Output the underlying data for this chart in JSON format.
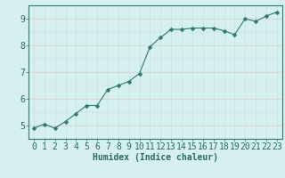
{
  "x": [
    0,
    1,
    2,
    3,
    4,
    5,
    6,
    7,
    8,
    9,
    10,
    11,
    12,
    13,
    14,
    15,
    16,
    17,
    18,
    19,
    20,
    21,
    22,
    23
  ],
  "y": [
    4.9,
    5.05,
    4.9,
    5.15,
    5.45,
    5.75,
    5.75,
    6.35,
    6.5,
    6.65,
    6.95,
    7.95,
    8.3,
    8.6,
    8.6,
    8.65,
    8.65,
    8.65,
    8.55,
    8.4,
    9.0,
    8.9,
    9.1,
    9.25
  ],
  "ylim": [
    4.5,
    9.5
  ],
  "xlim": [
    -0.5,
    23.5
  ],
  "yticks": [
    5,
    6,
    7,
    8,
    9
  ],
  "xticks": [
    0,
    1,
    2,
    3,
    4,
    5,
    6,
    7,
    8,
    9,
    10,
    11,
    12,
    13,
    14,
    15,
    16,
    17,
    18,
    19,
    20,
    21,
    22,
    23
  ],
  "xlabel": "Humidex (Indice chaleur)",
  "line_color": "#2d7a6e",
  "marker_color": "#2d7a6e",
  "bg_color": "#d6f0ef",
  "grid_color": "#c8dedd",
  "grid_color_red": "#e8c8c8",
  "xlabel_fontsize": 7,
  "tick_fontsize": 7
}
